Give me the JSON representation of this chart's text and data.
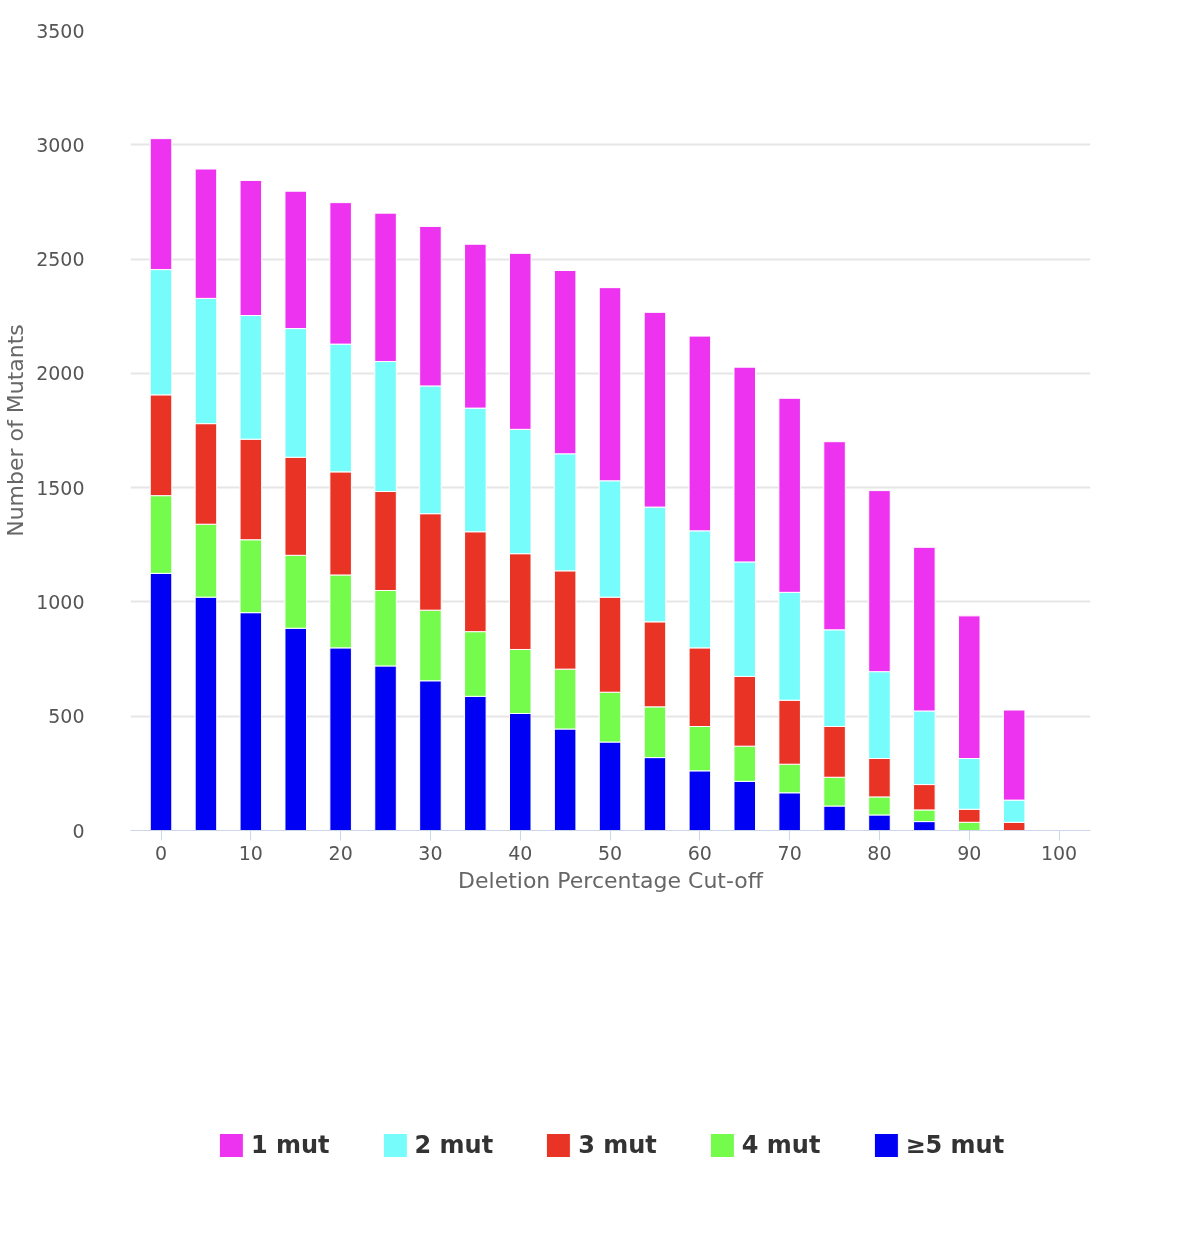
{
  "chart_data": {
    "type": "bar",
    "stacked": true,
    "xlabel": "Deletion Percentage Cut-off",
    "ylabel": "Number of Mutants",
    "x": [
      0,
      5,
      10,
      15,
      20,
      25,
      30,
      35,
      40,
      45,
      50,
      55,
      60,
      65,
      70,
      75,
      80,
      85,
      90,
      95
    ],
    "xlim": [
      -3.4,
      103.5
    ],
    "xticks": [
      0,
      10,
      20,
      30,
      40,
      50,
      60,
      70,
      80,
      90,
      100
    ],
    "ylim": [
      0,
      3500
    ],
    "yticks": [
      0,
      500,
      1000,
      1500,
      2000,
      2500,
      3000,
      3500
    ],
    "grid": "y",
    "legend": "bottom",
    "series": [
      {
        "name": "≥5 mut",
        "color": "#0000f5",
        "values": [
          1125,
          1021,
          953,
          885,
          799,
          720,
          655,
          587,
          512,
          444,
          387,
          319,
          261,
          215,
          165,
          107,
          68,
          39,
          0,
          0
        ]
      },
      {
        "name": "4 mut",
        "color": "#75fb4c",
        "values": [
          340,
          319,
          319,
          319,
          319,
          330,
          309,
          283,
          280,
          262,
          218,
          222,
          194,
          154,
          125,
          126,
          79,
          51,
          36,
          0
        ]
      },
      {
        "name": "3 mut",
        "color": "#e93324",
        "values": [
          441,
          440,
          440,
          429,
          451,
          433,
          422,
          437,
          419,
          430,
          416,
          372,
          344,
          305,
          280,
          222,
          168,
          111,
          57,
          36
        ]
      },
      {
        "name": "2 mut",
        "color": "#77fcfc",
        "values": [
          548,
          548,
          541,
          563,
          559,
          569,
          559,
          541,
          544,
          512,
          509,
          502,
          512,
          501,
          472,
          423,
          380,
          322,
          222,
          97
        ]
      },
      {
        "name": "1 mut",
        "color": "#ee33f0",
        "values": [
          573,
          566,
          591,
          601,
          619,
          649,
          698,
          717,
          770,
          802,
          845,
          852,
          852,
          852,
          849,
          823,
          792,
          716,
          624,
          394
        ]
      }
    ]
  }
}
